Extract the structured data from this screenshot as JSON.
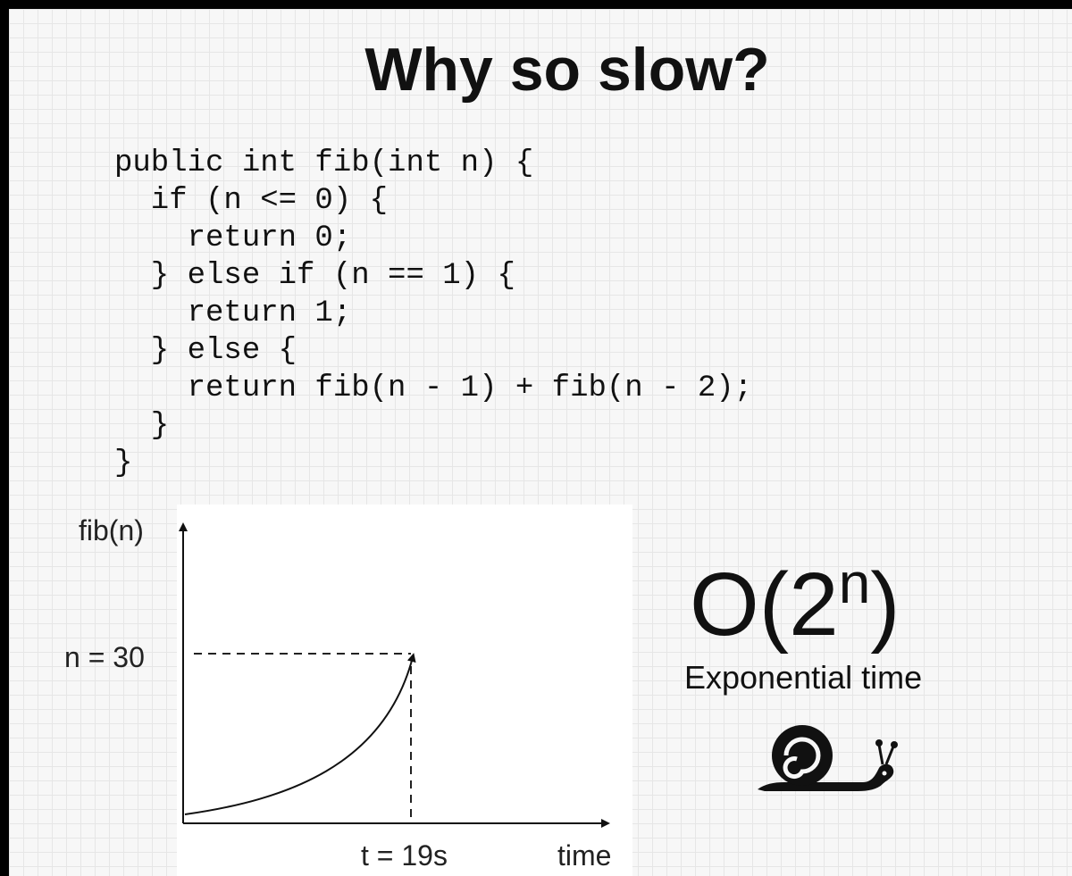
{
  "title": "Why so slow?",
  "code": [
    "public int fib(int n) {",
    "  if (n <= 0) {",
    "    return 0;",
    "  } else if (n == 1) {",
    "    return 1;",
    "  } else {",
    "    return fib(n - 1) + fib(n - 2);",
    "  }",
    "}"
  ],
  "chart_data": {
    "type": "line",
    "ylabel": "fib(n)",
    "xlabel": "time",
    "marker_y_label": "n = 30",
    "marker_x_label": "t = 19s",
    "curve": "exponential",
    "grid": false
  },
  "complexity": {
    "base": "O(2",
    "exponent": "n",
    "close": ")",
    "label": "Exponential time"
  },
  "icon": "snail-icon",
  "colors": {
    "frame": "#000000",
    "slide_bg": "#f7f7f7",
    "text": "#111111"
  }
}
